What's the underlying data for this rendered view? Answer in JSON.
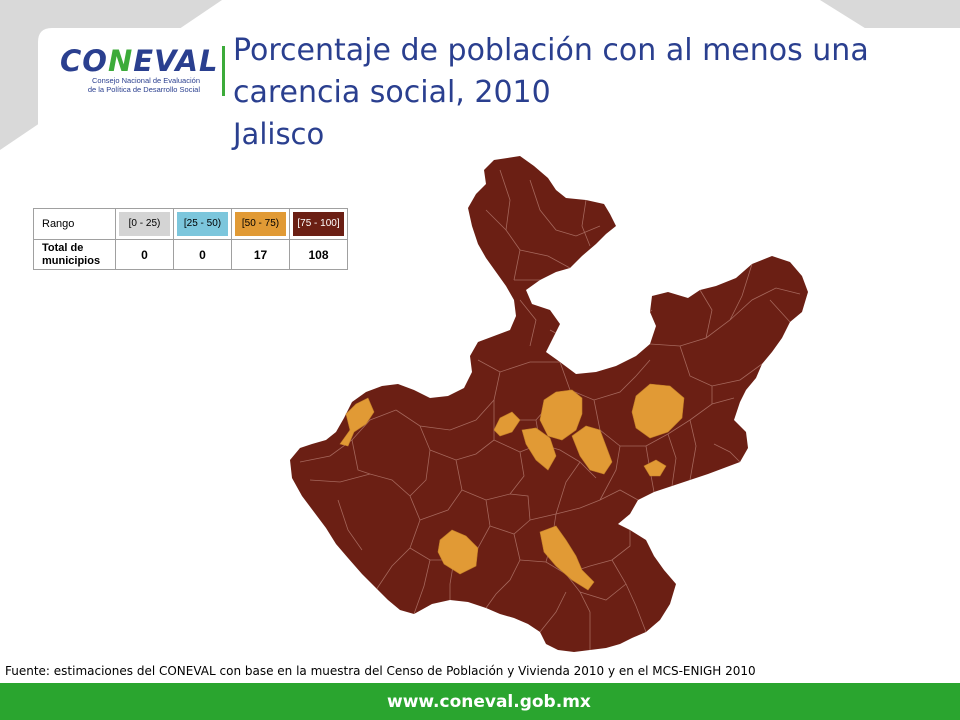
{
  "logo": {
    "name": "CONEVAL",
    "subtitle_line1": "Consejo Nacional de Evaluación",
    "subtitle_line2": "de la Política de Desarrollo Social"
  },
  "title": "Porcentaje de población con al menos una carencia social, 2010",
  "subtitle": "Jalisco",
  "legend": {
    "header_label": "Rango",
    "count_label": "Total de municipios",
    "ranges": [
      {
        "label": "[0 - 25)",
        "color": "#d4d4d4",
        "text_color": "#000000",
        "count": "0"
      },
      {
        "label": "[25 - 50)",
        "color": "#7cc6dc",
        "text_color": "#000000",
        "count": "0"
      },
      {
        "label": "[50 - 75)",
        "color": "#e19a35",
        "text_color": "#000000",
        "count": "17"
      },
      {
        "label": "[75 - 100]",
        "color": "#6b1f14",
        "text_color": "#ffffff",
        "count": "108"
      }
    ]
  },
  "map": {
    "state": "Jalisco",
    "base_color": "#6b1f14",
    "highlight_color": "#e19a35",
    "border_color": "#a5675c"
  },
  "source": "Fuente: estimaciones del CONEVAL con base en la muestra del Censo de Población y Vivienda 2010 y en el MCS-ENIGH 2010",
  "footer": {
    "url": "www.coneval.gob.mx",
    "color": "#2aa52f"
  }
}
